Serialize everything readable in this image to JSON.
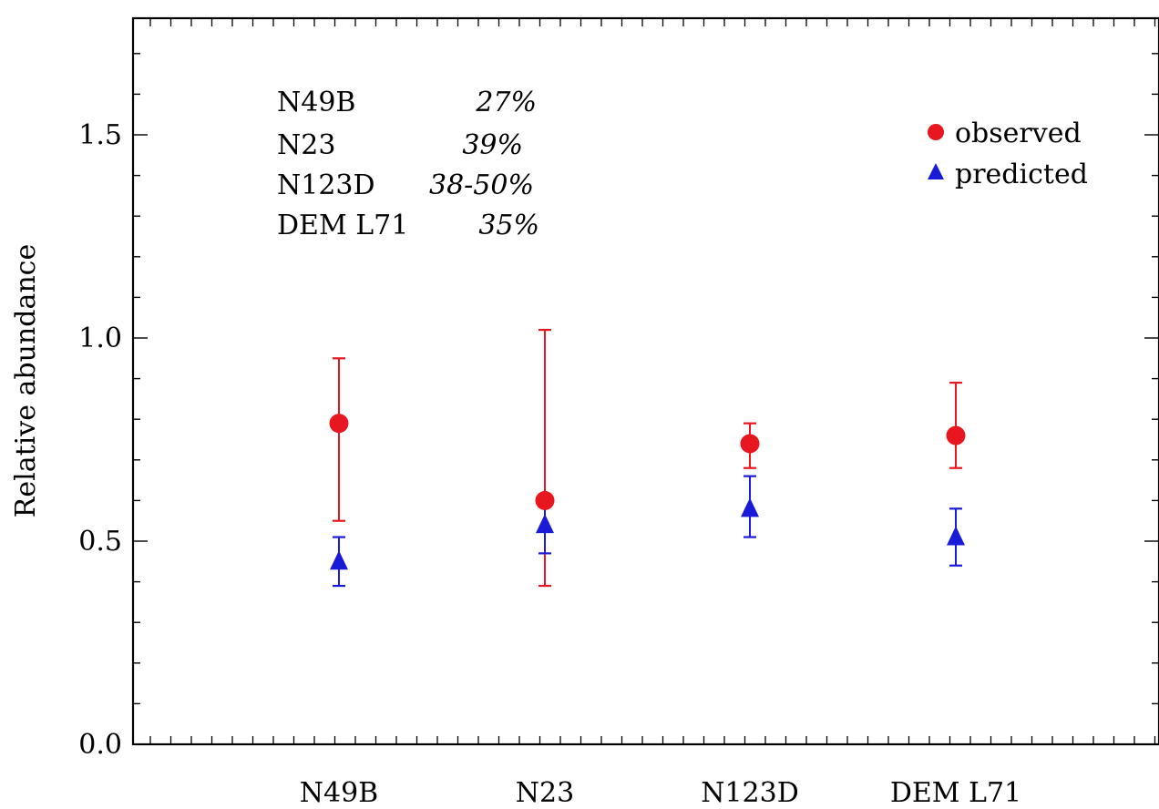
{
  "chart_data": {
    "type": "scatter",
    "ylabel": "Relative abundance",
    "ylim": [
      0.0,
      1.8
    ],
    "yticks": [
      {
        "value": 0.0,
        "label": "0.0"
      },
      {
        "value": 0.5,
        "label": "0.5"
      },
      {
        "value": 1.0,
        "label": "1.0"
      },
      {
        "value": 1.5,
        "label": "1.5"
      }
    ],
    "categories": [
      "N49B",
      "N23",
      "N123D",
      "DEM L71"
    ],
    "series": [
      {
        "name": "observed",
        "marker": "circle",
        "color": "#e8171f",
        "values": [
          0.79,
          0.6,
          0.74,
          0.76
        ],
        "err_low": [
          0.55,
          0.39,
          0.68,
          0.68
        ],
        "err_high": [
          0.95,
          1.02,
          0.79,
          0.89
        ]
      },
      {
        "name": "predicted",
        "marker": "triangle",
        "color": "#1a1ad9",
        "values": [
          0.45,
          0.54,
          0.58,
          0.51
        ],
        "err_low": [
          0.39,
          0.47,
          0.51,
          0.44
        ],
        "err_high": [
          0.51,
          0.61,
          0.66,
          0.58
        ]
      }
    ],
    "annotation_table": [
      {
        "name": "N49B",
        "value": "27%"
      },
      {
        "name": "N23",
        "value": "39%"
      },
      {
        "name": "N123D",
        "value": "38-50%"
      },
      {
        "name": "DEM L71",
        "value": "35%"
      }
    ],
    "legend_position": "top-right",
    "grid": false
  }
}
